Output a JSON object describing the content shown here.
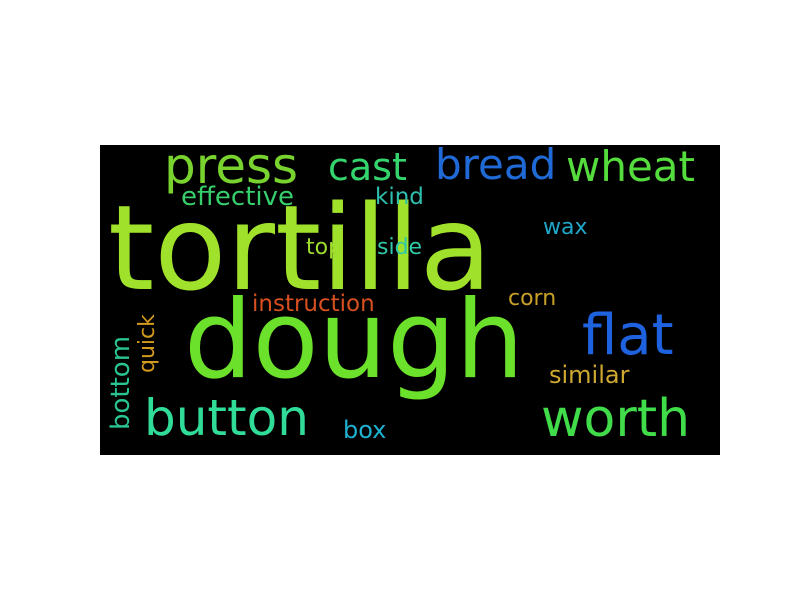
{
  "word_cloud": {
    "words": [
      {
        "text": "tortilla",
        "color": "#a0e22b"
      },
      {
        "text": "dough",
        "color": "#6be12b"
      },
      {
        "text": "press",
        "color": "#79d32e"
      },
      {
        "text": "cast",
        "color": "#35d56d"
      },
      {
        "text": "bread",
        "color": "#1f6ad6"
      },
      {
        "text": "wheat",
        "color": "#55dd3d"
      },
      {
        "text": "effective",
        "color": "#36cf6c"
      },
      {
        "text": "kind",
        "color": "#2ebfae"
      },
      {
        "text": "wax",
        "color": "#1ea7c8"
      },
      {
        "text": "top",
        "color": "#9fdc30"
      },
      {
        "text": "side",
        "color": "#31c8a8"
      },
      {
        "text": "instruction",
        "color": "#d8501f"
      },
      {
        "text": "corn",
        "color": "#c9a02a"
      },
      {
        "text": "flat",
        "color": "#1f62e0"
      },
      {
        "text": "quick",
        "color": "#d39a1e"
      },
      {
        "text": "bottom",
        "color": "#29c492"
      },
      {
        "text": "similar",
        "color": "#cfa830"
      },
      {
        "text": "button",
        "color": "#30dc98"
      },
      {
        "text": "box",
        "color": "#1eb1d0"
      },
      {
        "text": "worth",
        "color": "#41dc4a"
      }
    ]
  }
}
